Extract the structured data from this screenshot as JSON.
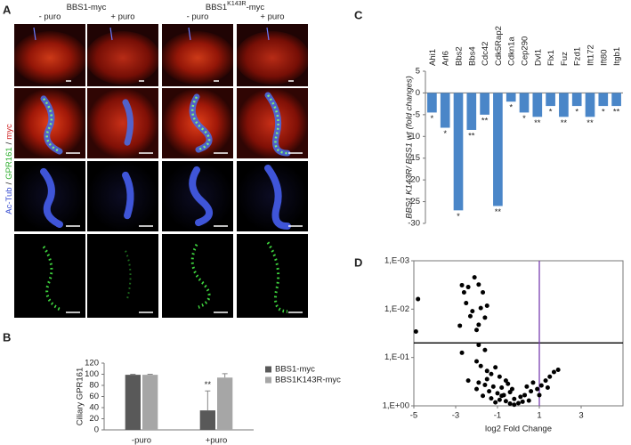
{
  "panel_a": {
    "label": "A",
    "groups": [
      {
        "title_parts": [
          "BBS1-myc"
        ]
      },
      {
        "title_parts": [
          "BBS1",
          "K143R",
          "-myc"
        ]
      }
    ],
    "columns": [
      "- puro",
      "+ puro",
      "- puro",
      "+ puro"
    ],
    "side_label": [
      "Ac-Tub",
      "/",
      "GPR161",
      "/",
      "myc"
    ],
    "side_colors": [
      "#3a4fd0",
      "#222222",
      "#2eae2e",
      "#222222",
      "#d02020"
    ]
  },
  "chart_data": [
    {
      "type": "bar",
      "label": "B",
      "y_label": "Ciliary GPR161",
      "categories": [
        "-puro",
        "+puro"
      ],
      "series": [
        {
          "name": "BBS1-myc",
          "color": "#595959",
          "values": [
            99,
            35
          ],
          "errors": [
            1,
            35
          ]
        },
        {
          "name": "BBS1K143R-myc",
          "color": "#a6a6a6",
          "values": [
            99,
            94
          ],
          "errors": [
            1,
            7
          ]
        }
      ],
      "annotation": "**",
      "ylim": [
        0,
        120
      ],
      "yticks": [
        0,
        20,
        40,
        60,
        80,
        100,
        120
      ]
    },
    {
      "type": "bar",
      "label": "C",
      "y_label": "BBS1 K143R/ BSS1 wt (fold changes)",
      "categories": [
        "Ahi1",
        "Arl6",
        "Bbs2",
        "Bbs4",
        "Cdc42",
        "Cdk5Rap2",
        "Cdkn1a",
        "Cep290",
        "Dvl1",
        "Flx1",
        "Fuz",
        "Fzd1",
        "Ift172",
        "Ift80",
        "Itgb1"
      ],
      "values": [
        -4.5,
        -8,
        -27,
        -8.5,
        -5,
        -26,
        -2,
        -4.5,
        -5.5,
        -3,
        -5.5,
        -3,
        -5.5,
        -3,
        -3
      ],
      "significance": [
        "*",
        "*",
        "*",
        "**",
        "**",
        "**",
        "*",
        "*",
        "**",
        "*",
        "**",
        "*",
        "**",
        "*",
        "**"
      ],
      "color": "#4a86c8",
      "ylim": [
        -30,
        5
      ],
      "yticks": [
        5,
        0,
        -5,
        -10,
        -15,
        -20,
        -25,
        -30
      ]
    },
    {
      "type": "scatter",
      "label": "D",
      "x_label": "log2 Fold Change",
      "x": [
        -4.8,
        -4.9,
        -2.6,
        -2.4,
        -2.7,
        -2.1,
        -1.9,
        -1.7,
        -2.5,
        -2.2,
        -1.8,
        -1.5,
        -2.3,
        -1.6,
        -2.8,
        -1.9,
        -2.0,
        -2.7,
        -1.9,
        -1.6,
        -2.0,
        -1.8,
        -1.5,
        -1.3,
        -1.1,
        -0.9,
        -2.4,
        -1.9,
        -1.6,
        -1.2,
        -0.8,
        -0.5,
        -0.3,
        -1.4,
        -1.0,
        -0.7,
        -0.4,
        -1.7,
        -1.3,
        -0.9,
        -0.6,
        -0.2,
        0.1,
        0.3,
        0.6,
        0.9,
        1.1,
        1.3,
        1.5,
        1.7,
        1.9,
        0.4,
        0.7,
        -1.1,
        -0.4,
        0.0,
        0.5,
        -2.0,
        -1.5,
        -0.6,
        1.0,
        1.4,
        -0.2,
        0.2,
        -0.8
      ],
      "values": [
        0.0062,
        0.029,
        0.0045,
        0.0035,
        0.0032,
        0.0022,
        0.0031,
        0.0045,
        0.0075,
        0.011,
        0.0095,
        0.0085,
        0.014,
        0.015,
        0.022,
        0.021,
        0.027,
        0.08,
        0.055,
        0.07,
        0.12,
        0.15,
        0.19,
        0.22,
        0.16,
        0.25,
        0.3,
        0.33,
        0.37,
        0.4,
        0.42,
        0.35,
        0.45,
        0.5,
        0.55,
        0.6,
        0.52,
        0.62,
        0.7,
        0.75,
        0.8,
        0.72,
        0.65,
        0.6,
        0.5,
        0.45,
        0.38,
        0.3,
        0.25,
        0.2,
        0.18,
        0.4,
        0.33,
        0.85,
        0.9,
        0.88,
        0.78,
        0.45,
        0.28,
        0.3,
        0.6,
        0.42,
        0.95,
        0.82,
        0.62
      ],
      "color": "#000000",
      "xlim": [
        -5,
        5
      ],
      "xticks": [
        -5,
        -3,
        -1,
        1,
        3
      ],
      "ylim": [
        0.001,
        1
      ],
      "y_log": true,
      "y_reversed": true,
      "yticks": [
        {
          "value": 0.001,
          "label": "1,E-03"
        },
        {
          "value": 0.01,
          "label": "1,E-02"
        },
        {
          "value": 0.1,
          "label": "1,E-01"
        },
        {
          "value": 1,
          "label": "1,E+00"
        }
      ],
      "reference_lines": {
        "y": 0.05,
        "x": 1,
        "y_color": "#000000",
        "x_color": "#7a3fb0"
      }
    }
  ]
}
